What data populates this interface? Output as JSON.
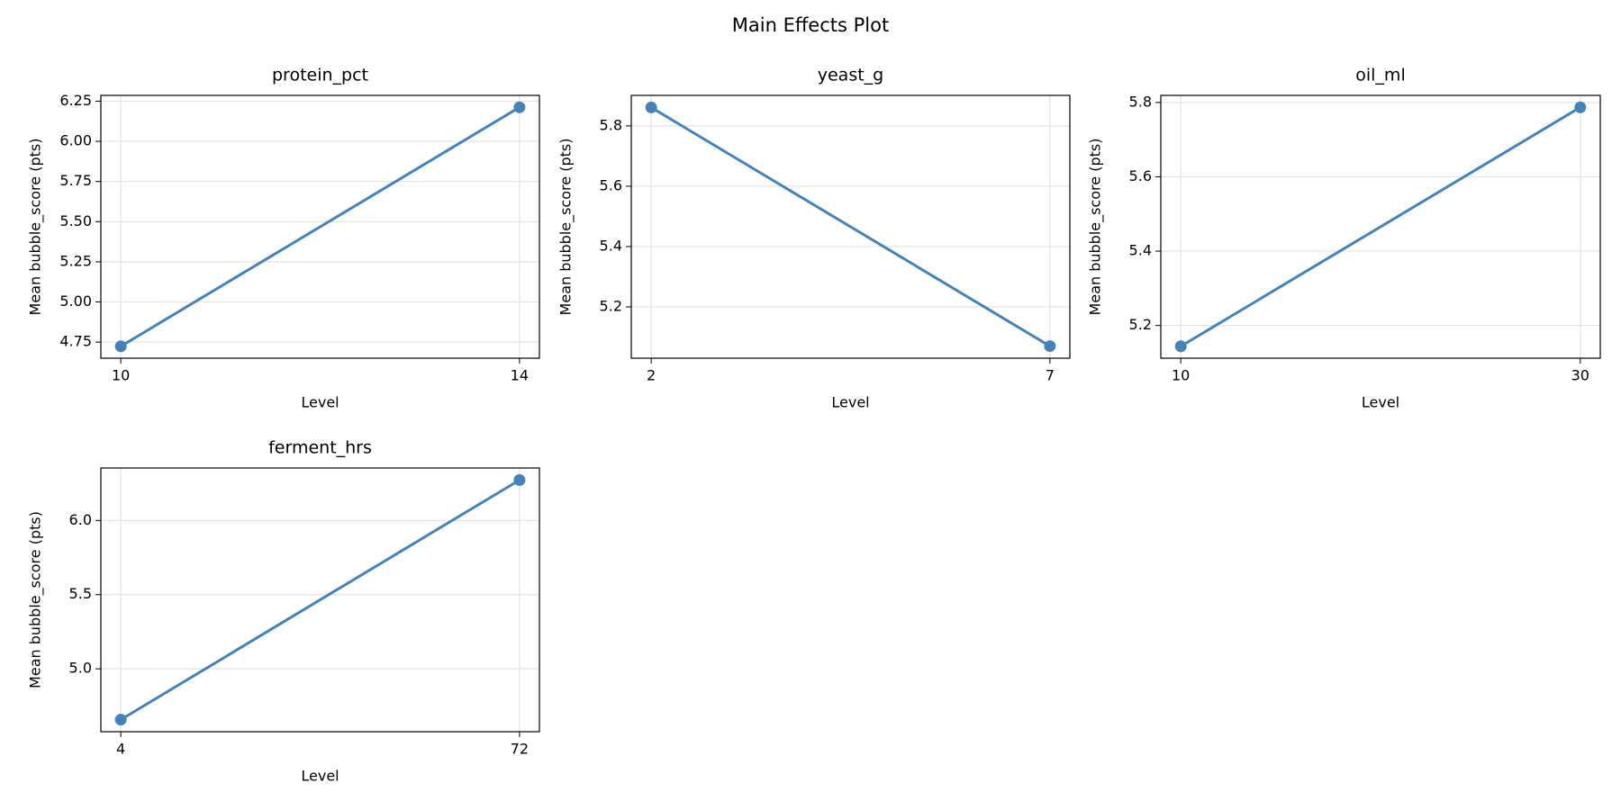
{
  "title": "Main Effects Plot",
  "chart_data": [
    {
      "type": "line",
      "title": "protein_pct",
      "xlabel": "Level",
      "ylabel": "Mean bubble_score (pts)",
      "color": "#4682b4",
      "grid": true,
      "x": [
        10,
        14
      ],
      "values": [
        4.724,
        6.212
      ],
      "xlim": [
        9.8,
        14.2
      ],
      "xticks": [
        10,
        14
      ],
      "ylim": [
        4.65,
        6.286
      ],
      "yticks": [
        4.75,
        {
          "value": 5,
          "label": "5.00"
        },
        5.25,
        {
          "value": 5.5,
          "label": "5.50"
        },
        5.75,
        {
          "value": 6,
          "label": "6.00"
        },
        6.25
      ]
    },
    {
      "type": "line",
      "title": "yeast_g",
      "xlabel": "Level",
      "ylabel": "Mean bubble_score (pts)",
      "color": "#4682b4",
      "grid": true,
      "x": [
        2,
        7
      ],
      "values": [
        5.861,
        5.07
      ],
      "xlim": [
        1.75,
        7.25
      ],
      "xticks": [
        2,
        7
      ],
      "ylim": [
        5.03,
        5.901
      ],
      "yticks": [
        5.2,
        5.4,
        5.6,
        5.8
      ]
    },
    {
      "type": "line",
      "title": "oil_ml",
      "xlabel": "Level",
      "ylabel": "Mean bubble_score (pts)",
      "color": "#4682b4",
      "grid": true,
      "x": [
        10,
        30
      ],
      "values": [
        5.144,
        5.787
      ],
      "xlim": [
        9,
        31
      ],
      "xticks": [
        10,
        30
      ],
      "ylim": [
        5.112,
        5.819
      ],
      "yticks": [
        5.2,
        5.4,
        5.6,
        5.8
      ]
    },
    {
      "type": "line",
      "title": "ferment_hrs",
      "xlabel": "Level",
      "ylabel": "Mean bubble_score (pts)",
      "color": "#4682b4",
      "grid": true,
      "x": [
        4,
        72
      ],
      "values": [
        4.657,
        6.273
      ],
      "xlim": [
        0.6,
        75.4
      ],
      "xticks": [
        4,
        72
      ],
      "ylim": [
        4.576,
        6.354
      ],
      "yticks": [
        {
          "value": 5,
          "label": "5.0"
        },
        5.5,
        {
          "value": 6,
          "label": "6.0"
        }
      ]
    }
  ]
}
